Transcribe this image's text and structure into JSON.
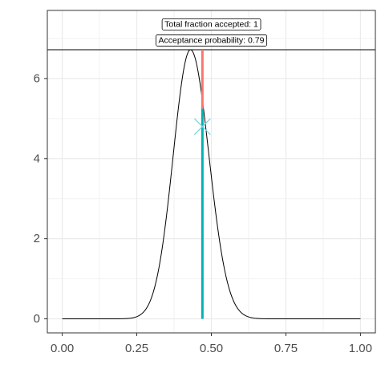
{
  "chart_data": {
    "type": "line",
    "title": "",
    "xlabel": "",
    "ylabel": "",
    "xlim": [
      -0.05,
      1.05
    ],
    "ylim": [
      -0.35,
      7.7
    ],
    "x_ticks": [
      "0.00",
      "0.25",
      "0.50",
      "0.75",
      "1.00"
    ],
    "x_tick_values": [
      0.0,
      0.25,
      0.5,
      0.75,
      1.0
    ],
    "y_ticks": [
      "0",
      "2",
      "4",
      "6"
    ],
    "y_tick_values": [
      0,
      2,
      4,
      6
    ],
    "grid": true,
    "series": [
      {
        "kind": "density-curve",
        "color": "#000000",
        "peak_x": 0.43,
        "peak_y": 6.72,
        "sd_left": 0.058,
        "sd_right": 0.062,
        "domain": [
          0.0,
          1.0
        ]
      }
    ],
    "horizontal_line": {
      "y": 6.72,
      "color": "#000000"
    },
    "observed": {
      "x": 0.47,
      "density": 4.8,
      "teal_segment": [
        0,
        5.25
      ],
      "red_segment": [
        5.25,
        6.72
      ],
      "teal_color": "#00B2B2",
      "red_color": "#F8766D",
      "marker": "x",
      "marker_color": "#7FD3E0"
    },
    "annotations": [
      {
        "label": "Total fraction accepted: 1",
        "x": 0.5,
        "y": 7.35
      },
      {
        "label": "Acceptance probability: 0.79",
        "x": 0.5,
        "y": 6.95
      }
    ]
  }
}
